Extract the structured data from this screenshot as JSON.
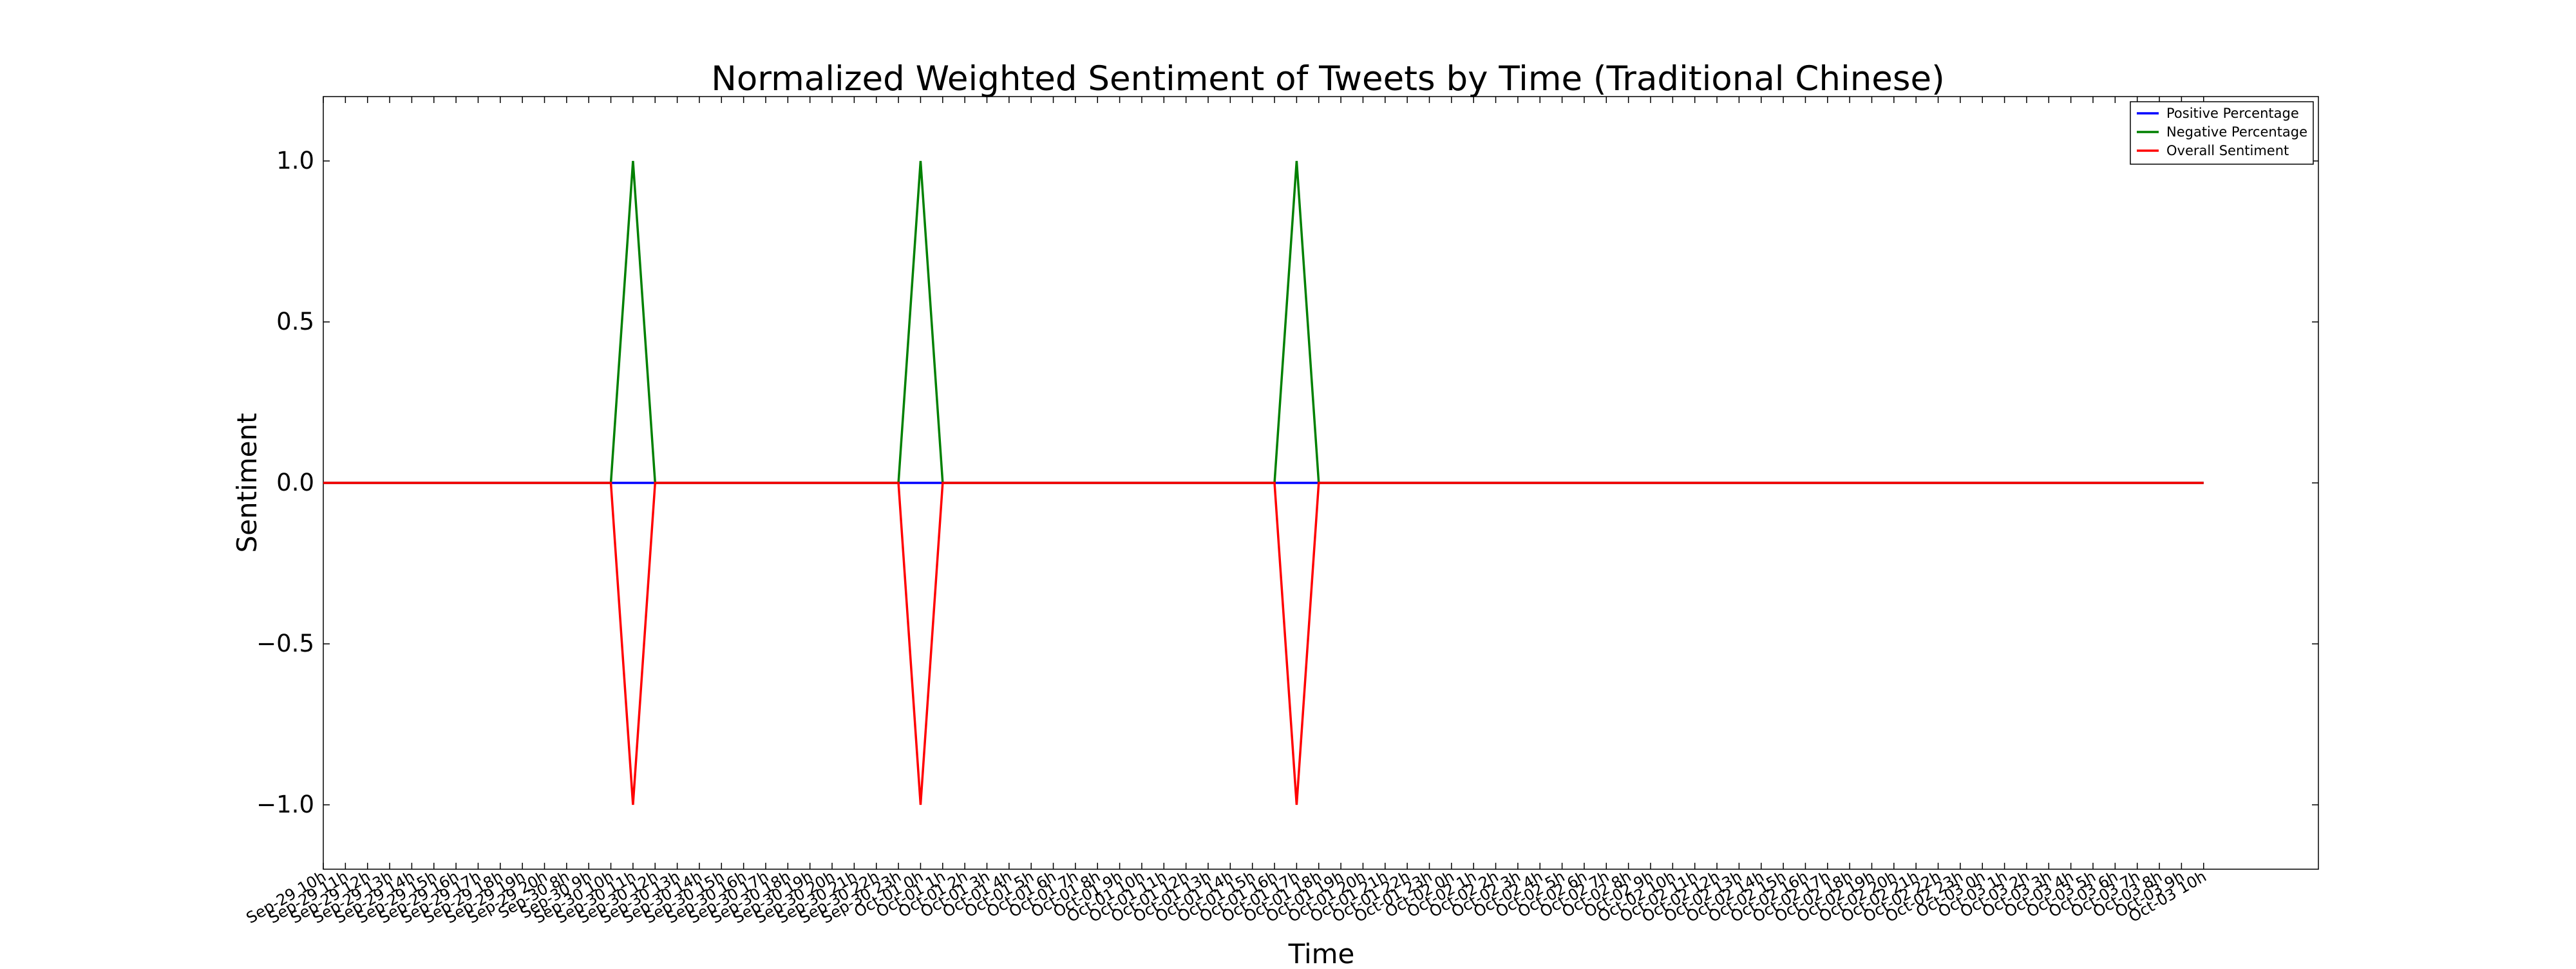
{
  "chart_data": {
    "type": "line",
    "title": "Normalized Weighted Sentiment of Tweets by Time (Traditional Chinese)",
    "xlabel": "Time",
    "ylabel": "Sentiment",
    "ylim": [
      -1.2,
      1.2
    ],
    "yticks": [
      -1.0,
      -0.5,
      0.0,
      0.5,
      1.0
    ],
    "ytick_labels": [
      "−1.0",
      "−0.5",
      "0.0",
      "0.5",
      "1.0"
    ],
    "grid": false,
    "legend_position": "top-right",
    "categories": [
      "Sep-29 10h",
      "Sep-29 11h",
      "Sep-29 12h",
      "Sep-29 13h",
      "Sep-29 14h",
      "Sep-29 15h",
      "Sep-29 16h",
      "Sep-29 17h",
      "Sep-29 18h",
      "Sep-29 19h",
      "Sep-29 20h",
      "Sep-30 8h",
      "Sep-30 9h",
      "Sep-30 10h",
      "Sep-30 11h",
      "Sep-30 12h",
      "Sep-30 13h",
      "Sep-30 14h",
      "Sep-30 15h",
      "Sep-30 16h",
      "Sep-30 17h",
      "Sep-30 18h",
      "Sep-30 19h",
      "Sep-30 20h",
      "Sep-30 21h",
      "Sep-30 22h",
      "Sep-30 23h",
      "Oct-01 0h",
      "Oct-01 1h",
      "Oct-01 2h",
      "Oct-01 3h",
      "Oct-01 4h",
      "Oct-01 5h",
      "Oct-01 6h",
      "Oct-01 7h",
      "Oct-01 8h",
      "Oct-01 9h",
      "Oct-01 10h",
      "Oct-01 11h",
      "Oct-01 12h",
      "Oct-01 13h",
      "Oct-01 14h",
      "Oct-01 15h",
      "Oct-01 16h",
      "Oct-01 17h",
      "Oct-01 18h",
      "Oct-01 19h",
      "Oct-01 20h",
      "Oct-01 21h",
      "Oct-01 22h",
      "Oct-01 23h",
      "Oct-02 0h",
      "Oct-02 1h",
      "Oct-02 2h",
      "Oct-02 3h",
      "Oct-02 4h",
      "Oct-02 5h",
      "Oct-02 6h",
      "Oct-02 7h",
      "Oct-02 8h",
      "Oct-02 9h",
      "Oct-02 10h",
      "Oct-02 11h",
      "Oct-02 12h",
      "Oct-02 13h",
      "Oct-02 14h",
      "Oct-02 15h",
      "Oct-02 16h",
      "Oct-02 17h",
      "Oct-02 18h",
      "Oct-02 19h",
      "Oct-02 20h",
      "Oct-02 21h",
      "Oct-02 22h",
      "Oct-02 23h",
      "Oct-03 0h",
      "Oct-03 1h",
      "Oct-03 2h",
      "Oct-03 3h",
      "Oct-03 4h",
      "Oct-03 5h",
      "Oct-03 6h",
      "Oct-03 7h",
      "Oct-03 8h",
      "Oct-03 9h",
      "Oct-03 10h"
    ],
    "series": [
      {
        "name": "Positive Percentage",
        "color": "#0000ff",
        "values": [
          0,
          0,
          0,
          0,
          0,
          0,
          0,
          0,
          0,
          0,
          0,
          0,
          0,
          0,
          0,
          0,
          0,
          0,
          0,
          0,
          0,
          0,
          0,
          0,
          0,
          0,
          0,
          0,
          0,
          0,
          0,
          0,
          0,
          0,
          0,
          0,
          0,
          0,
          0,
          0,
          0,
          0,
          0,
          0,
          0,
          0,
          0,
          0,
          0,
          0,
          0,
          0,
          0,
          0,
          0,
          0,
          0,
          0,
          0,
          0,
          0,
          0,
          0,
          0,
          0,
          0,
          0,
          0,
          0,
          0,
          0,
          0,
          0,
          0,
          0,
          0,
          0,
          0,
          0,
          0,
          0,
          0,
          0,
          0,
          0,
          0
        ]
      },
      {
        "name": "Negative Percentage",
        "color": "#008000",
        "values": [
          0,
          0,
          0,
          0,
          0,
          0,
          0,
          0,
          0,
          0,
          0,
          0,
          0,
          0,
          1,
          0,
          0,
          0,
          0,
          0,
          0,
          0,
          0,
          0,
          0,
          0,
          0,
          1,
          0,
          0,
          0,
          0,
          0,
          0,
          0,
          0,
          0,
          0,
          0,
          0,
          0,
          0,
          0,
          0,
          1,
          0,
          0,
          0,
          0,
          0,
          0,
          0,
          0,
          0,
          0,
          0,
          0,
          0,
          0,
          0,
          0,
          0,
          0,
          0,
          0,
          0,
          0,
          0,
          0,
          0,
          0,
          0,
          0,
          0,
          0,
          0,
          0,
          0,
          0,
          0,
          0,
          0,
          0,
          0,
          0,
          0
        ]
      },
      {
        "name": "Overall Sentiment",
        "color": "#ff0000",
        "values": [
          0,
          0,
          0,
          0,
          0,
          0,
          0,
          0,
          0,
          0,
          0,
          0,
          0,
          0,
          -1,
          0,
          0,
          0,
          0,
          0,
          0,
          0,
          0,
          0,
          0,
          0,
          0,
          -1,
          0,
          0,
          0,
          0,
          0,
          0,
          0,
          0,
          0,
          0,
          0,
          0,
          0,
          0,
          0,
          0,
          -1,
          0,
          0,
          0,
          0,
          0,
          0,
          0,
          0,
          0,
          0,
          0,
          0,
          0,
          0,
          0,
          0,
          0,
          0,
          0,
          0,
          0,
          0,
          0,
          0,
          0,
          0,
          0,
          0,
          0,
          0,
          0,
          0,
          0,
          0,
          0,
          0,
          0,
          0,
          0,
          0,
          0
        ]
      }
    ]
  }
}
